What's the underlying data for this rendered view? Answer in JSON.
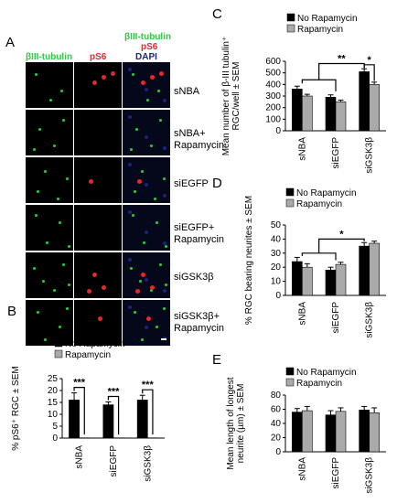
{
  "panels": {
    "A": {
      "letter": "A",
      "col_headers": {
        "tubulin": "βIII-tubulin",
        "ps6": "pS6",
        "merge_tubulin": "βIII-tubulin",
        "merge_ps6": "pS6",
        "merge_dapi": "DAPI"
      },
      "row_labels": [
        "sNBA",
        "sNBA+\nRapamycin",
        "siEGFP",
        "siEGFP+\nRapamycin",
        "siGSK3β",
        "siGSK3β+\nRapamycin"
      ],
      "colors": {
        "green": "#2ecc40",
        "red": "#e8262d",
        "blue": "#1a237e"
      }
    }
  },
  "chart_data": [
    {
      "id": "B",
      "letter": "B",
      "type": "bar",
      "categories": [
        "sNBA",
        "siEGFP",
        "siGSK3β"
      ],
      "series": [
        {
          "name": "No Rapamycin",
          "values": [
            16,
            14,
            16
          ],
          "errors": [
            3,
            1.2,
            2
          ],
          "color": "#000000"
        },
        {
          "name": "Rapamycin",
          "values": [
            0.1,
            0.1,
            0.1
          ],
          "errors": [
            0,
            0,
            0
          ],
          "color": "#aaaaaa"
        }
      ],
      "ylabel": "% pS6⁺ RGC ± SEM",
      "ylim": [
        0,
        25
      ],
      "yticks": [
        0,
        5,
        10,
        15,
        20,
        25
      ],
      "significance": [
        "***",
        "***",
        "***"
      ]
    },
    {
      "id": "C",
      "letter": "C",
      "type": "bar",
      "categories": [
        "sNBA",
        "siEGFP",
        "siGSK3β"
      ],
      "series": [
        {
          "name": "No Rapamycin",
          "values": [
            360,
            290,
            510
          ],
          "errors": [
            25,
            20,
            25
          ],
          "color": "#000000"
        },
        {
          "name": "Rapamycin",
          "values": [
            300,
            250,
            400
          ],
          "errors": [
            15,
            15,
            20
          ],
          "color": "#aaaaaa"
        }
      ],
      "ylabel_line1": "Mean number of β-III tubulin⁺",
      "ylabel_line2": "RGC/well ± SEM",
      "ylim": [
        0,
        600
      ],
      "yticks": [
        0,
        100,
        200,
        300,
        400,
        500,
        600
      ],
      "significance": [
        "**",
        "*"
      ]
    },
    {
      "id": "D",
      "letter": "D",
      "type": "bar",
      "categories": [
        "sNBA",
        "siEGFP",
        "siGSK3β"
      ],
      "series": [
        {
          "name": "No Rapamycin",
          "values": [
            24,
            18,
            35
          ],
          "errors": [
            3,
            2,
            2.5
          ],
          "color": "#000000"
        },
        {
          "name": "Rapamycin",
          "values": [
            20,
            22,
            37
          ],
          "errors": [
            2.5,
            1.5,
            1.5
          ],
          "color": "#aaaaaa"
        }
      ],
      "ylabel": "% RGC bearing neurites ± SEM",
      "ylim": [
        0,
        50
      ],
      "yticks": [
        0,
        10,
        20,
        30,
        40,
        50
      ],
      "significance": [
        "*"
      ]
    },
    {
      "id": "E",
      "letter": "E",
      "type": "bar",
      "categories": [
        "sNBA",
        "siEGFP",
        "siGSK3β"
      ],
      "series": [
        {
          "name": "No Rapamycin",
          "values": [
            56,
            52,
            59
          ],
          "errors": [
            5,
            6,
            5
          ],
          "color": "#000000"
        },
        {
          "name": "Rapamycin",
          "values": [
            58,
            57,
            55
          ],
          "errors": [
            6,
            5,
            7
          ],
          "color": "#aaaaaa"
        }
      ],
      "ylabel_line1": "Mean length of longest",
      "ylabel_line2": "neurite (µm) ± SEM",
      "ylim": [
        0,
        80
      ],
      "yticks": [
        0,
        20,
        40,
        60,
        80
      ]
    }
  ]
}
